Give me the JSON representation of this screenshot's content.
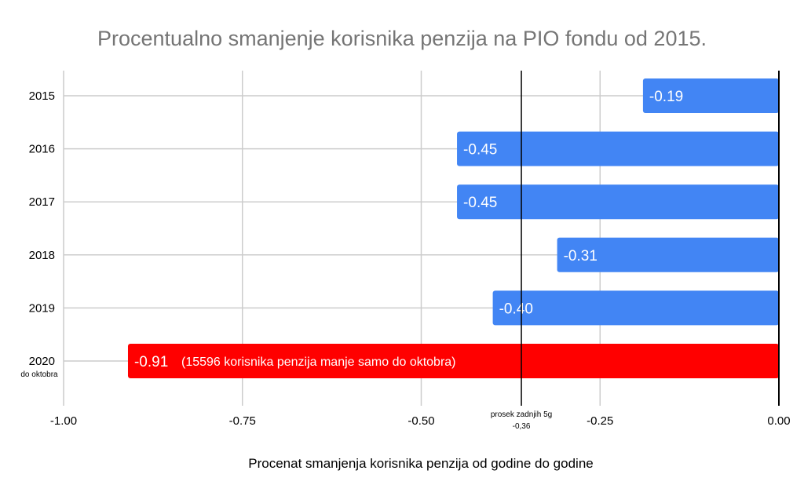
{
  "chart_data": {
    "type": "bar",
    "orientation": "horizontal",
    "title": "Procentualno smanjenje korisnika penzija na PIO fondu od 2015.",
    "xlabel": "Procenat smanjenja korisnika penzija od godine do godine",
    "ylabel": "",
    "xlim": [
      -1.0,
      0.0
    ],
    "xticks": [
      "-1.00",
      "-0.75",
      "-0.50",
      "-0.25",
      "0.00"
    ],
    "xtick_values": [
      -1.0,
      -0.75,
      -0.5,
      -0.25,
      0.0
    ],
    "grid": true,
    "categories": [
      "2015",
      "2016",
      "2017",
      "2018",
      "2019",
      "2020"
    ],
    "category_sublabels": [
      "",
      "",
      "",
      "",
      "",
      "do oktobra"
    ],
    "values": [
      -0.19,
      -0.45,
      -0.45,
      -0.31,
      -0.4,
      -0.91
    ],
    "data_labels": [
      "-0.19",
      "-0.45",
      "-0.45",
      "-0.31",
      "-0.40",
      "-0.91"
    ],
    "bar_colors": [
      "#4285f4",
      "#4285f4",
      "#4285f4",
      "#4285f4",
      "#4285f4",
      "#ff0000"
    ],
    "annotations": [
      {
        "category": "2020",
        "text": "(15596 korisnika penzija manje samo do oktobra)"
      }
    ],
    "reference_line": {
      "value": -0.36,
      "label_line1": "prosek zadnjih 5g",
      "label_line2": "-0,36"
    },
    "colors": {
      "title": "#757575",
      "grid": "#cccccc",
      "axis": "#000000",
      "bar": "#4285f4",
      "highlight": "#ff0000"
    }
  }
}
